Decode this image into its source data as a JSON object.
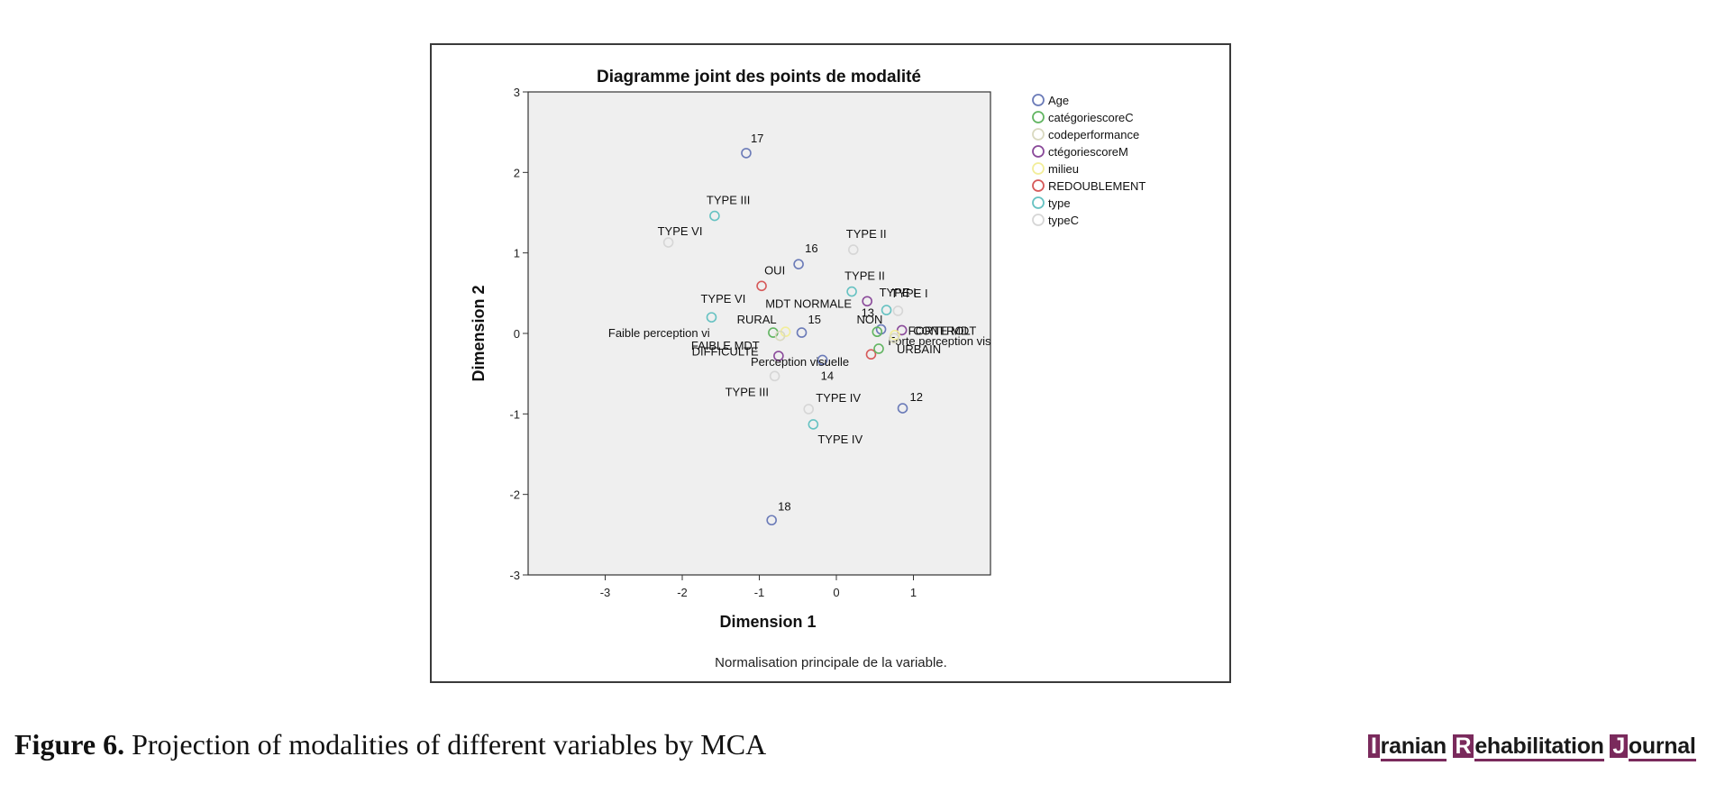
{
  "chart_data": {
    "type": "scatter",
    "title": "Diagramme joint des points de modalité",
    "xlabel": "Dimension 1",
    "ylabel": "Dimension 2",
    "xlim": [
      -4,
      2
    ],
    "ylim": [
      -3,
      3
    ],
    "xticks": [
      -3,
      -2,
      -1,
      0,
      1
    ],
    "yticks": [
      -3,
      -2,
      -1,
      0,
      1,
      2,
      3
    ],
    "note": "Normalisation principale de la variable.",
    "legend_position": "right",
    "plot_background": "#efefef",
    "grid": false,
    "legend": [
      {
        "name": "Age",
        "color": "#6b7bb8"
      },
      {
        "name": "catégoriescoreC",
        "color": "#62b562"
      },
      {
        "name": "codeperformance",
        "color": "#d9d9c0"
      },
      {
        "name": "ctégoriescoreM",
        "color": "#8a4a9a"
      },
      {
        "name": "milieu",
        "color": "#f2ee9a"
      },
      {
        "name": "REDOUBLEMENT",
        "color": "#d65a5a"
      },
      {
        "name": "type",
        "color": "#66c2c2"
      },
      {
        "name": "typeC",
        "color": "#d6d6d6"
      }
    ],
    "points": [
      {
        "series": "Age",
        "x": -1.17,
        "y": 2.24,
        "label": "17"
      },
      {
        "series": "Age",
        "x": -0.49,
        "y": 0.86,
        "label": "16"
      },
      {
        "series": "Age",
        "x": -0.45,
        "y": 0.01,
        "label": "15"
      },
      {
        "series": "Age",
        "x": -0.18,
        "y": -0.33,
        "label": "14"
      },
      {
        "series": "Age",
        "x": 0.58,
        "y": 0.05,
        "label": "13"
      },
      {
        "series": "Age",
        "x": 0.86,
        "y": -0.93,
        "label": "12"
      },
      {
        "series": "Age",
        "x": -0.84,
        "y": -2.32,
        "label": "18"
      },
      {
        "series": "type",
        "x": -1.58,
        "y": 1.46,
        "label": "TYPE III"
      },
      {
        "series": "type",
        "x": -1.62,
        "y": 0.2,
        "label": "TYPE VI"
      },
      {
        "series": "type",
        "x": 0.2,
        "y": 0.52,
        "label": "TYPE II"
      },
      {
        "series": "type",
        "x": 0.65,
        "y": 0.29,
        "label": "TYPE I"
      },
      {
        "series": "type",
        "x": -0.3,
        "y": -1.13,
        "label": "TYPE IV"
      },
      {
        "series": "typeC",
        "x": -2.18,
        "y": 1.13,
        "label": "TYPE VI"
      },
      {
        "series": "typeC",
        "x": 0.22,
        "y": 1.04,
        "label": "TYPE II"
      },
      {
        "series": "typeC",
        "x": 0.8,
        "y": 0.28,
        "label": "TYPE I"
      },
      {
        "series": "typeC",
        "x": -0.8,
        "y": -0.53,
        "label": "TYPE III"
      },
      {
        "series": "typeC",
        "x": -0.36,
        "y": -0.94,
        "label": "TYPE IV"
      },
      {
        "series": "REDOUBLEMENT",
        "x": -0.97,
        "y": 0.59,
        "label": "OUI"
      },
      {
        "series": "REDOUBLEMENT",
        "x": 0.45,
        "y": -0.26,
        "label": "NON"
      },
      {
        "series": "ctégoriescoreM",
        "x": 0.4,
        "y": 0.4,
        "label": "MDT NORMALE"
      },
      {
        "series": "ctégoriescoreM",
        "x": 0.85,
        "y": 0.04,
        "label": "FORTE MDT"
      },
      {
        "series": "ctégoriescoreM",
        "x": -0.75,
        "y": -0.28,
        "label": "FAIBLE MDT"
      },
      {
        "series": "catégoriescoreC",
        "x": -0.82,
        "y": 0.01,
        "label": "Faible perception vi"
      },
      {
        "series": "catégoriescoreC",
        "x": 0.53,
        "y": 0.02,
        "label": "Forte perception vis"
      },
      {
        "series": "catégoriescoreC",
        "x": 0.55,
        "y": -0.19,
        "label": "Perception visuelle"
      },
      {
        "series": "milieu",
        "x": -0.66,
        "y": 0.02,
        "label": "RURAL"
      },
      {
        "series": "milieu",
        "x": 0.76,
        "y": -0.02,
        "label": "URBAIN"
      },
      {
        "series": "codeperformance",
        "x": -0.73,
        "y": -0.03,
        "label": "DIFFICULTE"
      },
      {
        "series": "codeperformance",
        "x": 0.75,
        "y": -0.06,
        "label": "CONTROL"
      }
    ]
  },
  "caption": {
    "label": "Figure 6.",
    "text": " Projection of modalities of different variables by MCA"
  },
  "journal": {
    "word1_cap": "I",
    "word1_rest": "ranian",
    "word2_cap": "R",
    "word2_rest": "ehabilitation",
    "word3_cap": "J",
    "word3_rest": "ournal"
  }
}
